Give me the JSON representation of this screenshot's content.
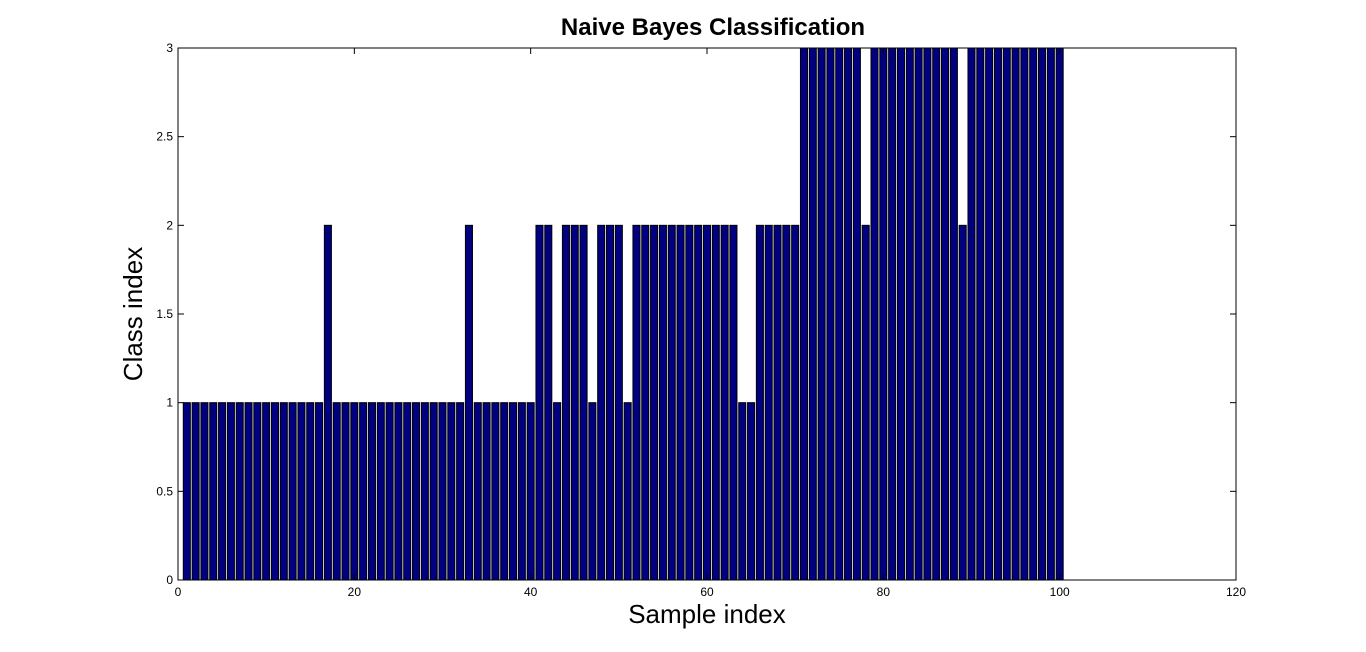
{
  "colors": {
    "bar_fill": "#000080",
    "bar_edge": "#000000",
    "axes": "#000000",
    "background": "#ffffff"
  },
  "chart_data": {
    "type": "bar",
    "title": "Naive Bayes Classification",
    "xlabel": "Sample index",
    "ylabel": "Class index",
    "xlim": [
      0,
      120
    ],
    "ylim": [
      0,
      3
    ],
    "xticks": [
      0,
      20,
      40,
      60,
      80,
      100,
      120
    ],
    "yticks": [
      0,
      0.5,
      1,
      1.5,
      2,
      2.5,
      3
    ],
    "xtick_labels": [
      "0",
      "20",
      "40",
      "60",
      "80",
      "100",
      "120"
    ],
    "ytick_labels": [
      "0",
      "0.5",
      "1",
      "1.5",
      "2",
      "2.5",
      "3"
    ],
    "grid": false,
    "x": [
      1,
      2,
      3,
      4,
      5,
      6,
      7,
      8,
      9,
      10,
      11,
      12,
      13,
      14,
      15,
      16,
      17,
      18,
      19,
      20,
      21,
      22,
      23,
      24,
      25,
      26,
      27,
      28,
      29,
      30,
      31,
      32,
      33,
      34,
      35,
      36,
      37,
      38,
      39,
      40,
      41,
      42,
      43,
      44,
      45,
      46,
      47,
      48,
      49,
      50,
      51,
      52,
      53,
      54,
      55,
      56,
      57,
      58,
      59,
      60,
      61,
      62,
      63,
      64,
      65,
      66,
      67,
      68,
      69,
      70,
      71,
      72,
      73,
      74,
      75,
      76,
      77,
      78,
      79,
      80,
      81,
      82,
      83,
      84,
      85,
      86,
      87,
      88,
      89,
      90,
      91,
      92,
      93,
      94,
      95,
      96,
      97,
      98,
      99,
      100
    ],
    "values": [
      1,
      1,
      1,
      1,
      1,
      1,
      1,
      1,
      1,
      1,
      1,
      1,
      1,
      1,
      1,
      1,
      2,
      1,
      1,
      1,
      1,
      1,
      1,
      1,
      1,
      1,
      1,
      1,
      1,
      1,
      1,
      1,
      2,
      1,
      1,
      1,
      1,
      1,
      1,
      1,
      2,
      2,
      1,
      2,
      2,
      2,
      1,
      2,
      2,
      2,
      1,
      2,
      2,
      2,
      2,
      2,
      2,
      2,
      2,
      2,
      2,
      2,
      2,
      1,
      1,
      2,
      2,
      2,
      2,
      2,
      3,
      3,
      3,
      3,
      3,
      3,
      3,
      2,
      3,
      3,
      3,
      3,
      3,
      3,
      3,
      3,
      3,
      3,
      2,
      3,
      3,
      3,
      3,
      3,
      3,
      3,
      3,
      3,
      3,
      3
    ]
  }
}
